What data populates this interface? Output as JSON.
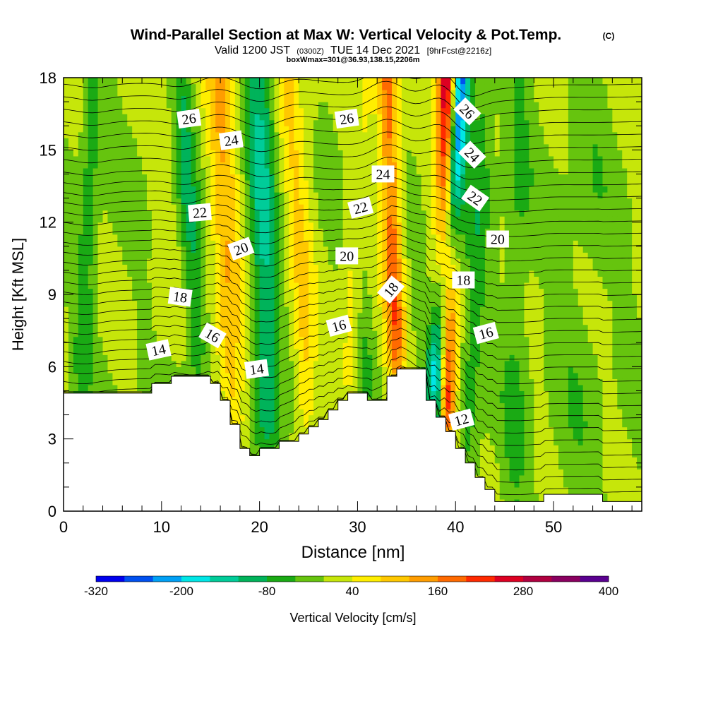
{
  "chart_data": {
    "type": "heatmap",
    "title": "Wind-Parallel Section at Max W: Vertical Velocity & Pot.Temp.",
    "copyright_mark": "(C)",
    "subtitle": {
      "valid": "Valid 1200 JST",
      "utc": "(0300Z)",
      "date": "TUE 14 Dec 2021",
      "forecast": "[9hrFcst@2216z]"
    },
    "info_line": "boxWmax=301@36.93,138.15,2206m",
    "xlabel": "Distance [nm]",
    "ylabel": "Height [Kft MSL]",
    "xlim": [
      0,
      59
    ],
    "ylim": [
      0,
      18
    ],
    "x_ticks": [
      "0",
      "10",
      "20",
      "30",
      "40",
      "50"
    ],
    "y_ticks": [
      "0",
      "3",
      "6",
      "9",
      "12",
      "15",
      "18"
    ],
    "colorbar": {
      "label": "Vertical Velocity [cm/s]",
      "tick_labels": [
        "-320",
        "-200",
        "-80",
        "40",
        "160",
        "280",
        "400"
      ],
      "min": -320,
      "max": 400,
      "colors": [
        "#0000ee",
        "#0050f0",
        "#00a0f5",
        "#00e6e6",
        "#00cc99",
        "#00b35a",
        "#1aaa14",
        "#66c40e",
        "#c6e60a",
        "#ffee00",
        "#ffc800",
        "#ff9d00",
        "#ff6a00",
        "#ff2a00",
        "#dd0022",
        "#b00040",
        "#8a0060",
        "#5a0090"
      ]
    },
    "theta_contour_labels": [
      {
        "text": "26",
        "x": 12.8,
        "y": 16.3,
        "rot": -8
      },
      {
        "text": "26",
        "x": 28.9,
        "y": 16.3,
        "rot": -8
      },
      {
        "text": "26",
        "x": 41.2,
        "y": 16.6,
        "rot": 45
      },
      {
        "text": "24",
        "x": 17.1,
        "y": 15.4,
        "rot": -8
      },
      {
        "text": "24",
        "x": 32.6,
        "y": 14.0,
        "rot": 0
      },
      {
        "text": "24",
        "x": 41.7,
        "y": 14.8,
        "rot": 45
      },
      {
        "text": "22",
        "x": 13.9,
        "y": 12.4,
        "rot": -5
      },
      {
        "text": "22",
        "x": 30.3,
        "y": 12.6,
        "rot": -15
      },
      {
        "text": "22",
        "x": 42.0,
        "y": 13.0,
        "rot": 35
      },
      {
        "text": "20",
        "x": 18.1,
        "y": 10.9,
        "rot": -20
      },
      {
        "text": "20",
        "x": 28.9,
        "y": 10.6,
        "rot": 0
      },
      {
        "text": "20",
        "x": 44.3,
        "y": 11.3,
        "rot": 0
      },
      {
        "text": "18",
        "x": 11.9,
        "y": 8.9,
        "rot": 8
      },
      {
        "text": "18",
        "x": 33.4,
        "y": 9.2,
        "rot": -50
      },
      {
        "text": "18",
        "x": 40.8,
        "y": 9.6,
        "rot": 0
      },
      {
        "text": "16",
        "x": 15.2,
        "y": 7.3,
        "rot": 30
      },
      {
        "text": "16",
        "x": 28.1,
        "y": 7.7,
        "rot": -15
      },
      {
        "text": "16",
        "x": 43.1,
        "y": 7.4,
        "rot": -15
      },
      {
        "text": "14",
        "x": 9.7,
        "y": 6.7,
        "rot": -12
      },
      {
        "text": "14",
        "x": 19.7,
        "y": 5.9,
        "rot": -8
      },
      {
        "text": "12",
        "x": 40.6,
        "y": 3.8,
        "rot": -15
      }
    ],
    "terrain_profile": {
      "x": [
        0,
        9,
        9,
        11,
        11,
        15,
        15,
        16,
        16,
        17,
        17,
        18,
        18,
        19,
        19,
        20,
        20,
        22,
        22,
        24,
        24,
        25,
        25,
        26,
        26,
        27,
        27,
        28,
        28,
        29,
        29,
        31,
        31,
        33,
        33,
        34,
        34,
        37,
        37,
        38,
        38,
        39,
        39,
        40,
        40,
        41,
        41,
        42,
        42,
        43,
        43,
        44,
        44,
        49,
        49,
        55,
        55,
        59
      ],
      "y": [
        4.9,
        4.9,
        5.3,
        5.3,
        5.6,
        5.6,
        5.3,
        5.3,
        4.6,
        4.6,
        3.6,
        3.6,
        2.6,
        2.6,
        2.3,
        2.3,
        2.6,
        2.6,
        2.9,
        2.9,
        3.2,
        3.2,
        3.5,
        3.5,
        3.8,
        3.8,
        4.2,
        4.2,
        4.6,
        4.6,
        4.9,
        4.9,
        4.6,
        4.6,
        5.6,
        5.6,
        5.9,
        5.9,
        4.6,
        4.6,
        3.9,
        3.9,
        3.3,
        3.3,
        2.6,
        2.6,
        2.0,
        2.0,
        1.4,
        1.4,
        0.9,
        0.9,
        0.4,
        0.4,
        0.7,
        0.7,
        0.4,
        0.4
      ]
    },
    "velocity_features": [
      {
        "x0": 1.5,
        "x1": 3.0,
        "halfwidth": 1.0,
        "value": -60
      },
      {
        "x0": 9.0,
        "x1": 11.0,
        "halfwidth": 1.2,
        "value": 15
      },
      {
        "x0": 14.5,
        "x1": 12.0,
        "halfwidth": 1.0,
        "value": -80
      },
      {
        "x0": 17.5,
        "x1": 16.0,
        "halfwidth": 1.5,
        "value": 110
      },
      {
        "x0": 21.0,
        "x1": 20.0,
        "halfwidth": 1.3,
        "value": -120
      },
      {
        "x0": 25.5,
        "x1": 23.0,
        "halfwidth": 1.2,
        "value": 75
      },
      {
        "x0": 24.0,
        "x1": 25.5,
        "halfwidth": 1.0,
        "value": 15
      },
      {
        "x0": 29.0,
        "x1": 30.5,
        "halfwidth": 1.2,
        "value": 75
      },
      {
        "x0": 31.0,
        "x1": 30.0,
        "halfwidth": 0.9,
        "value": -60
      },
      {
        "x0": 34.5,
        "x1": 33.0,
        "halfwidth": 1.0,
        "value": 180
      },
      {
        "x0": 37.2,
        "x1": 40.5,
        "halfwidth": 1.0,
        "value": -300
      },
      {
        "x0": 38.9,
        "x1": 39.2,
        "halfwidth": 1.0,
        "value": 330
      },
      {
        "x0": 40.8,
        "x1": 43.0,
        "halfwidth": 1.2,
        "value": -60
      },
      {
        "x0": 46.0,
        "x1": 46.5,
        "halfwidth": 1.3,
        "value": -40
      },
      {
        "x0": 52.0,
        "x1": 54.0,
        "halfwidth": 2.5,
        "value": -20
      }
    ]
  }
}
